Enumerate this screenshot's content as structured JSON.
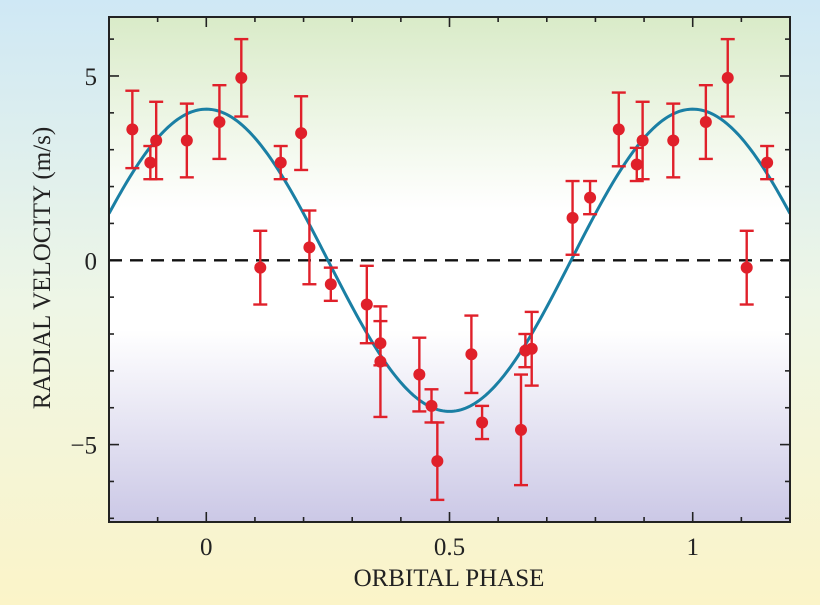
{
  "chart_data": {
    "type": "scatter",
    "title": "",
    "xlabel": "ORBITAL PHASE",
    "ylabel": "RADIAL VELOCITY (m/s)",
    "xlim": [
      -0.2,
      1.2
    ],
    "ylim": [
      -7.1,
      6.6
    ],
    "x_ticks": [
      0,
      0.5,
      1
    ],
    "x_tick_labels": [
      "0",
      "0.5",
      "1"
    ],
    "y_ticks": [
      -5,
      0,
      5
    ],
    "y_tick_labels": [
      "−5",
      "0",
      "5"
    ],
    "zero_line": 0,
    "model_curve": {
      "type": "sine",
      "amplitude": 4.1,
      "period": 1.0,
      "peak_phase": 0.0
    },
    "points": [
      {
        "x": -0.152,
        "y": 3.55,
        "err": 1.05
      },
      {
        "x": -0.115,
        "y": 2.65,
        "err": 0.45
      },
      {
        "x": -0.103,
        "y": 3.25,
        "err": 1.05
      },
      {
        "x": -0.04,
        "y": 3.25,
        "err": 1.0
      },
      {
        "x": 0.027,
        "y": 3.75,
        "err": 1.0
      },
      {
        "x": 0.072,
        "y": 4.95,
        "err": 1.05
      },
      {
        "x": 0.111,
        "y": -0.2,
        "err": 1.0
      },
      {
        "x": 0.153,
        "y": 2.65,
        "err": 0.45
      },
      {
        "x": 0.195,
        "y": 3.45,
        "err": 1.0
      },
      {
        "x": 0.212,
        "y": 0.35,
        "err": 1.0
      },
      {
        "x": 0.256,
        "y": -0.65,
        "err": 0.45
      },
      {
        "x": 0.33,
        "y": -1.2,
        "err": 1.05
      },
      {
        "x": 0.358,
        "y": -2.25,
        "err": 0.6
      },
      {
        "x": 0.358,
        "y": -2.75,
        "err": 1.5
      },
      {
        "x": 0.438,
        "y": -3.1,
        "err": 1.0
      },
      {
        "x": 0.463,
        "y": -3.95,
        "err": 0.45
      },
      {
        "x": 0.475,
        "y": -5.45,
        "err": 1.05
      },
      {
        "x": 0.545,
        "y": -2.55,
        "err": 1.05
      },
      {
        "x": 0.567,
        "y": -4.4,
        "err": 0.45
      },
      {
        "x": 0.647,
        "y": -4.6,
        "err": 1.5
      },
      {
        "x": 0.656,
        "y": -2.45,
        "err": 0.45
      },
      {
        "x": 0.669,
        "y": -2.4,
        "err": 1.0
      },
      {
        "x": 0.753,
        "y": 1.15,
        "err": 1.0
      },
      {
        "x": 0.789,
        "y": 1.7,
        "err": 0.45
      },
      {
        "x": 0.848,
        "y": 3.55,
        "err": 1.0
      },
      {
        "x": 0.885,
        "y": 2.6,
        "err": 0.45
      },
      {
        "x": 0.897,
        "y": 3.25,
        "err": 1.05
      },
      {
        "x": 0.96,
        "y": 3.25,
        "err": 1.0
      },
      {
        "x": 1.027,
        "y": 3.75,
        "err": 1.0
      },
      {
        "x": 1.072,
        "y": 4.95,
        "err": 1.05
      },
      {
        "x": 1.111,
        "y": -0.2,
        "err": 1.0
      },
      {
        "x": 1.153,
        "y": 2.65,
        "err": 0.45
      }
    ],
    "colors": {
      "points": "#e0202a",
      "curve": "#1a7fa4",
      "zero_line": "#111111",
      "bg_top": "#d9ebc8",
      "bg_mid": "#ffffff",
      "bg_bottom": "#cbc8e6",
      "frame_top": "#cfe8f5",
      "frame_bottom": "#fbf4c8"
    }
  }
}
